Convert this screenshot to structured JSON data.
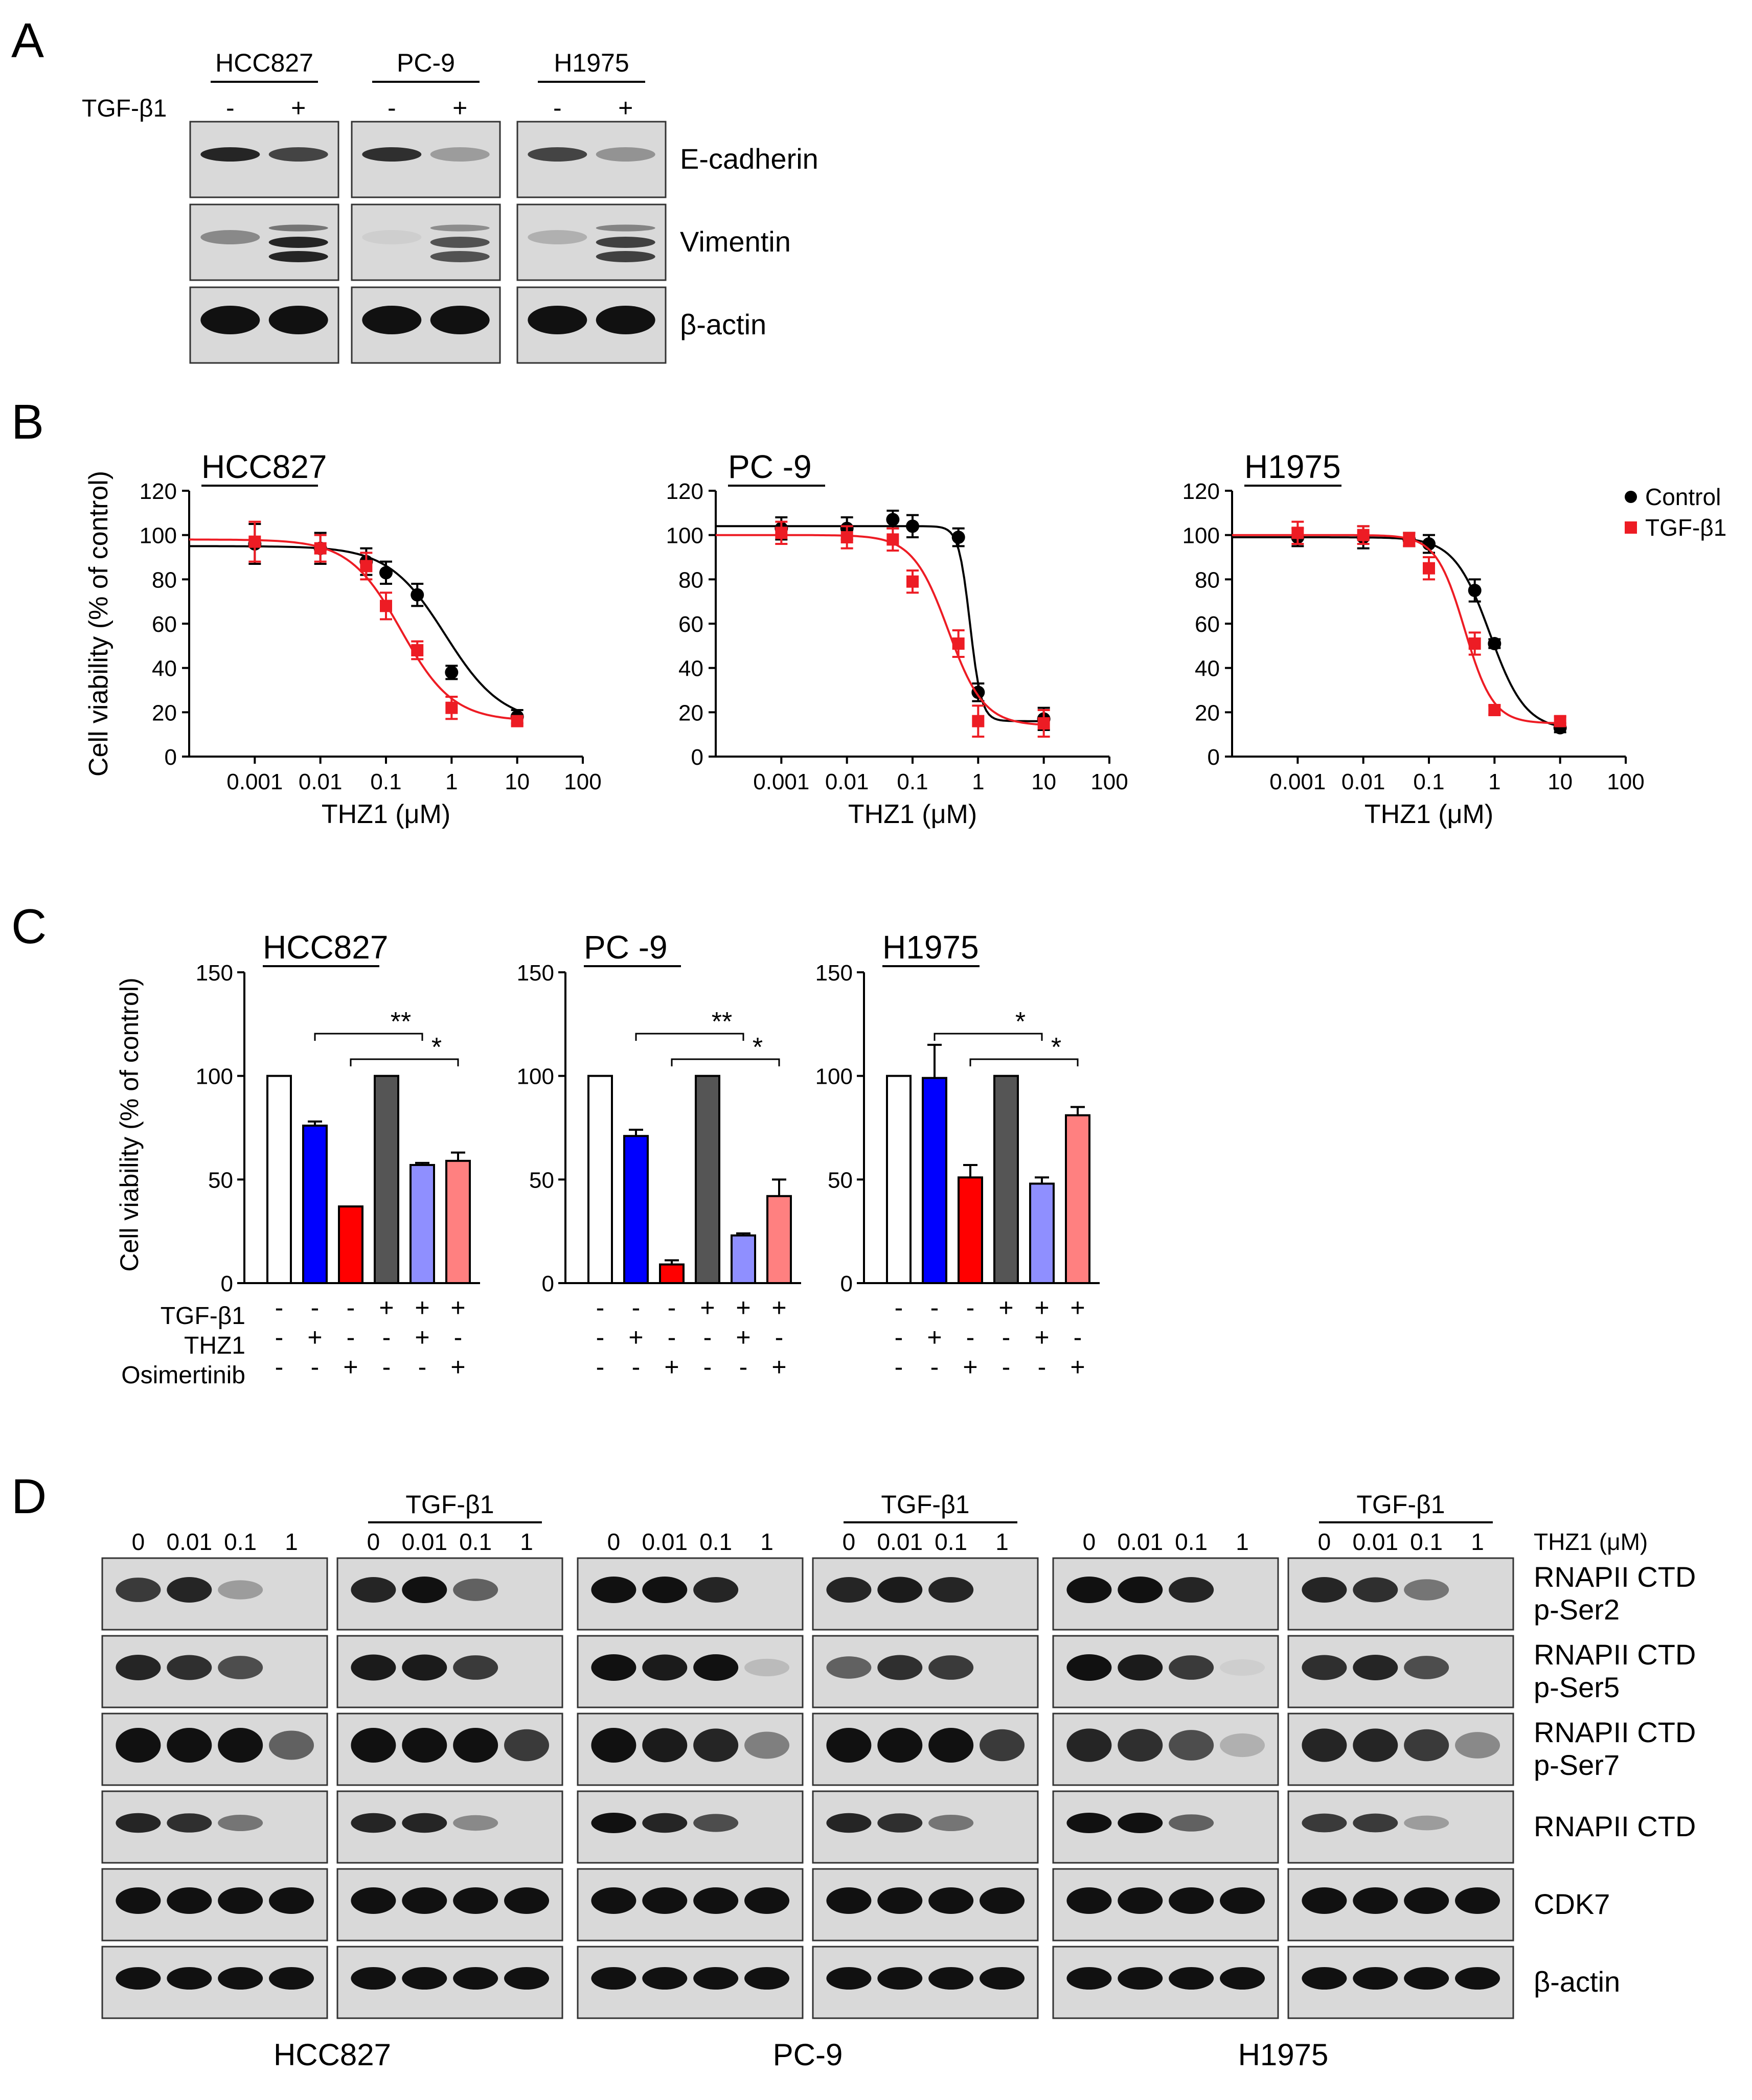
{
  "panels": {
    "A": "A",
    "B": "B",
    "C": "C",
    "D": "D"
  },
  "colors": {
    "control": "#000000",
    "tgf": "#ed1c24",
    "blot_bg": "#d9d9d9",
    "band": "#111111",
    "bar_colors": [
      "#ffffff",
      "#0000ff",
      "#ff0000",
      "#555555",
      "#8f8fff",
      "#ff8080"
    ]
  },
  "panelA": {
    "tgf_label": "TGF-β1",
    "cell_lines": [
      "HCC827",
      "PC-9",
      "H1975"
    ],
    "lanes": [
      "-",
      "+"
    ],
    "proteins": [
      "E-cadherin",
      "Vimentin",
      "β-actin"
    ]
  },
  "panelB": {
    "legend": [
      "Control",
      "TGF-β1"
    ]
  },
  "panelC": {
    "row_labels": [
      "TGF-β1",
      "THZ1",
      "Osimertinib"
    ],
    "signs": {
      "tgf": [
        "-",
        "-",
        "-",
        "+",
        "+",
        "+"
      ],
      "thz1": [
        "-",
        "+",
        "-",
        "-",
        "+",
        "-"
      ],
      "osi": [
        "-",
        "-",
        "+",
        "-",
        "-",
        "+"
      ]
    }
  },
  "panelD": {
    "tgf_label": "TGF-β1",
    "concentrations": [
      "0",
      "0.01",
      "0.1",
      "1"
    ],
    "unit_label": "THZ1 (μM)",
    "cell_lines": [
      "HCC827",
      "PC-9",
      "H1975"
    ],
    "proteins": [
      [
        "RNAPII CTD",
        "p-Ser2"
      ],
      [
        "RNAPII CTD",
        "p-Ser5"
      ],
      [
        "RNAPII CTD",
        "p-Ser7"
      ],
      [
        "RNAPII CTD"
      ],
      [
        "CDK7"
      ],
      [
        "β-actin"
      ]
    ]
  },
  "chart_data": [
    {
      "type": "scatter",
      "title": "HCC827",
      "xlabel": "THZ1 (μM)",
      "ylabel": "Cell viability (% of control)",
      "x_scale": "log",
      "xlim": [
        0.0001,
        100
      ],
      "ylim": [
        0,
        120
      ],
      "xticks": [
        "0.001",
        "0.01",
        "0.1",
        "1",
        "10",
        "100"
      ],
      "yticks": [
        0,
        20,
        40,
        60,
        80,
        100,
        120
      ],
      "series": [
        {
          "name": "Control",
          "x": [
            0.001,
            0.01,
            0.05,
            0.1,
            0.3,
            1,
            10
          ],
          "y": [
            96,
            94,
            88,
            83,
            73,
            38,
            18
          ],
          "err": [
            9,
            7,
            6,
            5,
            5,
            3,
            3
          ],
          "fit": {
            "top": 95,
            "bottom": 15,
            "ic50": 0.8,
            "hill": 1.0
          }
        },
        {
          "name": "TGF-β1",
          "x": [
            0.001,
            0.01,
            0.05,
            0.1,
            0.3,
            1,
            10
          ],
          "y": [
            97,
            94,
            86,
            68,
            48,
            22,
            16
          ],
          "err": [
            9,
            6,
            6,
            6,
            4,
            5,
            2
          ],
          "fit": {
            "top": 98,
            "bottom": 16,
            "ic50": 0.17,
            "hill": 1.1
          }
        }
      ]
    },
    {
      "type": "scatter",
      "title": "PC -9",
      "xlabel": "THZ1 (μM)",
      "ylabel": "",
      "x_scale": "log",
      "xlim": [
        0.0001,
        100
      ],
      "ylim": [
        0,
        120
      ],
      "xticks": [
        "0.001",
        "0.01",
        "0.1",
        "1",
        "10",
        "100"
      ],
      "yticks": [
        0,
        20,
        40,
        60,
        80,
        100,
        120
      ],
      "series": [
        {
          "name": "Control",
          "x": [
            0.001,
            0.01,
            0.05,
            0.1,
            0.5,
            1,
            10
          ],
          "y": [
            103,
            103,
            107,
            104,
            99,
            29,
            17
          ],
          "err": [
            5,
            5,
            4,
            5,
            4,
            4,
            5
          ],
          "fit": {
            "top": 104,
            "bottom": 16,
            "ic50": 0.75,
            "hill": 5.0
          }
        },
        {
          "name": "TGF-β1",
          "x": [
            0.001,
            0.01,
            0.05,
            0.1,
            0.5,
            1,
            10
          ],
          "y": [
            101,
            99,
            98,
            79,
            51,
            16,
            15
          ],
          "err": [
            5,
            5,
            5,
            5,
            6,
            7,
            6
          ],
          "fit": {
            "top": 100,
            "bottom": 14,
            "ic50": 0.35,
            "hill": 1.6
          }
        }
      ]
    },
    {
      "type": "scatter",
      "title": "H1975",
      "xlabel": "THZ1 (μM)",
      "ylabel": "",
      "x_scale": "log",
      "xlim": [
        0.0001,
        100
      ],
      "ylim": [
        0,
        120
      ],
      "xticks": [
        "0.001",
        "0.01",
        "0.1",
        "1",
        "10",
        "100"
      ],
      "yticks": [
        0,
        20,
        40,
        60,
        80,
        100,
        120
      ],
      "series": [
        {
          "name": "Control",
          "x": [
            0.001,
            0.01,
            0.05,
            0.1,
            0.5,
            1,
            10
          ],
          "y": [
            99,
            99,
            98,
            96,
            75,
            51,
            13
          ],
          "err": [
            4,
            5,
            3,
            4,
            5,
            2,
            2
          ],
          "fit": {
            "top": 99,
            "bottom": 12,
            "ic50": 0.85,
            "hill": 1.6
          }
        },
        {
          "name": "TGF-β1",
          "x": [
            0.001,
            0.01,
            0.05,
            0.1,
            0.5,
            1,
            10
          ],
          "y": [
            101,
            100,
            98,
            85,
            51,
            21,
            16
          ],
          "err": [
            5,
            4,
            3,
            5,
            5,
            2,
            2
          ],
          "fit": {
            "top": 100,
            "bottom": 15,
            "ic50": 0.35,
            "hill": 2.0
          }
        }
      ]
    },
    {
      "type": "bar",
      "title": "HCC827",
      "ylabel": "Cell viability (% of control)",
      "ylim": [
        0,
        150
      ],
      "yticks": [
        0,
        50,
        100,
        150
      ],
      "values": [
        100,
        76,
        37,
        100,
        57,
        59
      ],
      "errors": [
        0,
        2,
        0,
        0,
        1,
        4
      ],
      "significance": [
        {
          "from": 2,
          "to": 5,
          "label": "**"
        },
        {
          "from": 3,
          "to": 6,
          "label": "*"
        }
      ]
    },
    {
      "type": "bar",
      "title": "PC -9",
      "ylim": [
        0,
        150
      ],
      "yticks": [
        0,
        50,
        100,
        150
      ],
      "values": [
        100,
        71,
        9,
        100,
        23,
        42
      ],
      "errors": [
        0,
        3,
        2,
        0,
        1,
        8
      ],
      "significance": [
        {
          "from": 2,
          "to": 5,
          "label": "**"
        },
        {
          "from": 3,
          "to": 6,
          "label": "*"
        }
      ]
    },
    {
      "type": "bar",
      "title": "H1975",
      "ylim": [
        0,
        150
      ],
      "yticks": [
        0,
        50,
        100,
        150
      ],
      "values": [
        100,
        99,
        51,
        100,
        48,
        81
      ],
      "errors": [
        0,
        16,
        6,
        0,
        3,
        4
      ],
      "significance": [
        {
          "from": 2,
          "to": 5,
          "label": "*"
        },
        {
          "from": 3,
          "to": 6,
          "label": "*"
        }
      ]
    }
  ]
}
